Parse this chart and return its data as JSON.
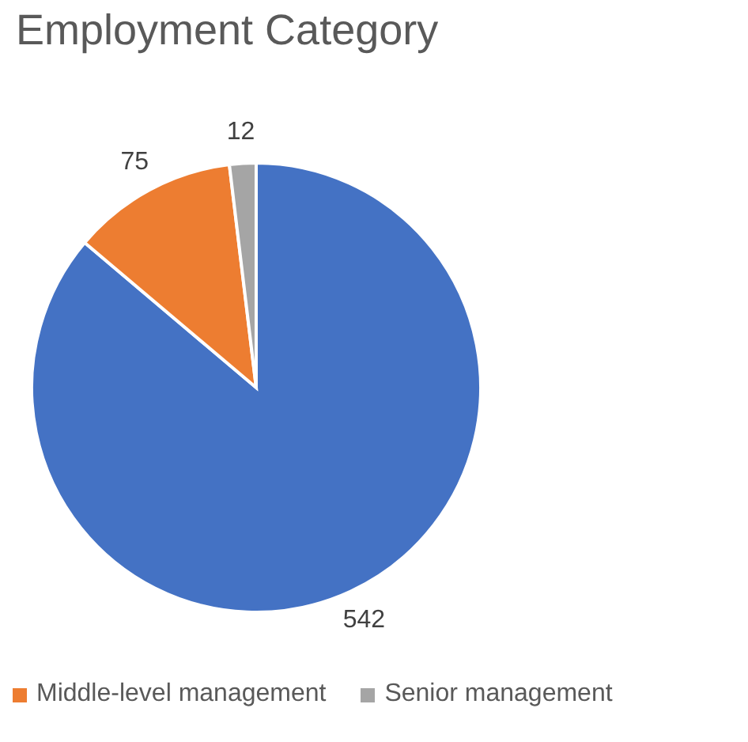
{
  "chart_data": {
    "type": "pie",
    "title": "Employment Category",
    "categories": [
      null,
      "Middle-level management",
      "Senior management"
    ],
    "values": [
      542,
      75,
      12
    ],
    "colors": [
      "#4472c4",
      "#ed7d31",
      "#a5a5a5"
    ],
    "data_labels": true,
    "legend": "bottom"
  }
}
